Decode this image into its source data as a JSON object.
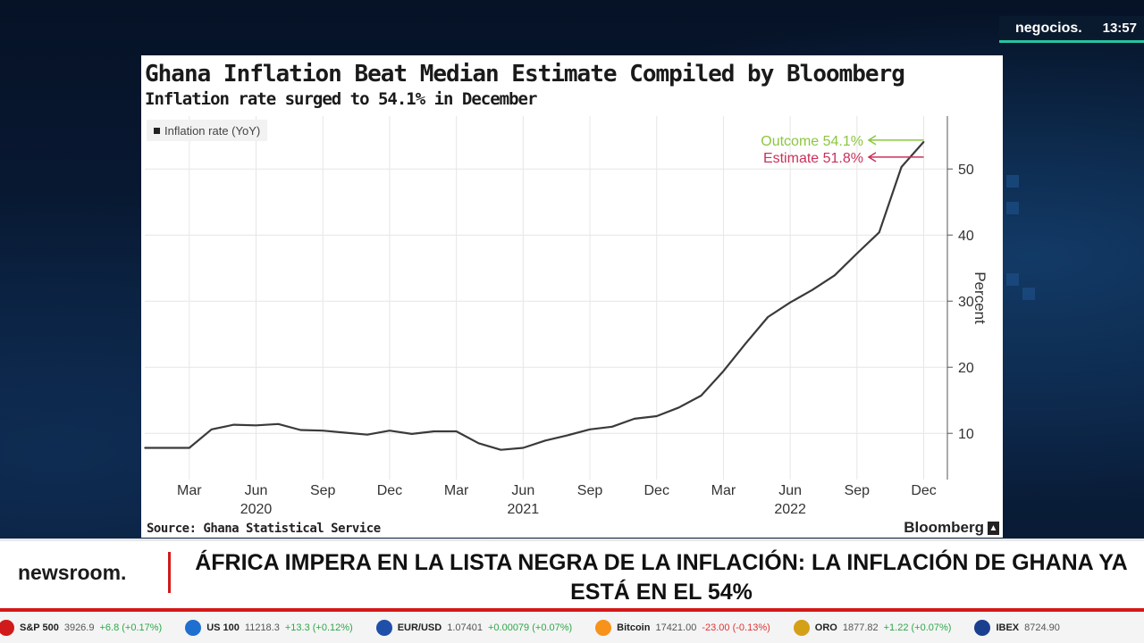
{
  "channel": {
    "brand": "negocios.",
    "time": "13:57"
  },
  "chart_data": {
    "type": "line",
    "title": "Ghana Inflation Beat Median Estimate Compiled by Bloomberg",
    "subtitle": "Inflation  rate surged to 54.1% in December",
    "legend": "Inflation rate (YoY)",
    "ylabel": "Percent",
    "xlabel": "",
    "ylim": [
      3,
      58
    ],
    "yticks": [
      10,
      20,
      30,
      40,
      50
    ],
    "x_tick_labels": [
      "Mar",
      "Jun",
      "Sep",
      "Dec",
      "Mar",
      "Jun",
      "Sep",
      "Dec",
      "Mar",
      "Jun",
      "Sep",
      "Dec"
    ],
    "x_tick_index": [
      2,
      5,
      8,
      11,
      14,
      17,
      20,
      23,
      26,
      29,
      32,
      35
    ],
    "year_labels": [
      {
        "text": "2020",
        "index": 5
      },
      {
        "text": "2021",
        "index": 17
      },
      {
        "text": "2022",
        "index": 29
      }
    ],
    "series": [
      {
        "name": "Inflation rate (YoY)",
        "x_index": [
          0,
          1,
          2,
          3,
          4,
          5,
          6,
          7,
          8,
          9,
          10,
          11,
          12,
          13,
          14,
          15,
          16,
          17,
          18,
          19,
          20,
          21,
          22,
          23,
          24,
          25,
          26,
          27,
          28,
          29,
          30,
          31,
          32,
          33,
          34,
          35
        ],
        "values": [
          7.8,
          7.8,
          7.8,
          10.6,
          11.3,
          11.2,
          11.4,
          10.5,
          10.4,
          10.1,
          9.8,
          10.4,
          9.9,
          10.3,
          10.3,
          8.5,
          7.5,
          7.8,
          8.9,
          9.7,
          10.6,
          11.0,
          12.2,
          12.6,
          13.9,
          15.7,
          19.4,
          23.6,
          27.6,
          29.8,
          31.7,
          33.9,
          37.2,
          40.4,
          50.3,
          54.1
        ]
      }
    ],
    "annotations": [
      {
        "text": "Outcome 54.1%",
        "value": 54.1,
        "color": "#8cc63f"
      },
      {
        "text": "Estimate 51.8%",
        "value": 51.8,
        "color": "#c8325a"
      }
    ],
    "source": "Source: Ghana Statistical Service",
    "publisher": "Bloomberg"
  },
  "lower_third": {
    "brand": "newsroom.",
    "headline_line1": "ÁFRICA IMPERA EN LA LISTA NEGRA DE LA INFLACIÓN: LA INFLACIÓN DE GHANA YA",
    "headline_line2": "ESTÁ EN EL 54%"
  },
  "ticker": [
    {
      "name": "S&P 500",
      "value": "3926.9",
      "change": "+6.8 (+0.17%)",
      "color": "#d11a1a"
    },
    {
      "name": "US 100",
      "value": "11218.3",
      "change": "+13.3 (+0.12%)",
      "color": "#1f6fd1"
    },
    {
      "name": "EUR/USD",
      "value": "1.07401",
      "change": "+0.00079 (+0.07%)",
      "color": "#1f4fa8"
    },
    {
      "name": "Bitcoin",
      "value": "17421.00",
      "change": "-23.00 (-0.13%)",
      "color": "#f7931a"
    },
    {
      "name": "ORO",
      "value": "1877.82",
      "change": "+1.22 (+0.07%)",
      "color": "#d4a017"
    },
    {
      "name": "IBEX",
      "value": "8724.90",
      "change": "",
      "color": "#1a3f8f"
    }
  ]
}
